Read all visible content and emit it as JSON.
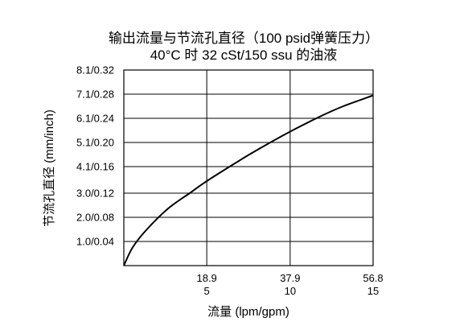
{
  "chart_data": {
    "type": "line",
    "title": "输出流量与节流孔直径（100 psid弹簧压力）",
    "subtitle": "40°C 时 32 cSt/150 ssu 的油液",
    "xlabel": "流量 (lpm/gpm)",
    "ylabel": "节流孔直径 (mm/inch)",
    "xlim": [
      0,
      56.8
    ],
    "ylim": [
      0,
      8.1
    ],
    "grid": true,
    "x_ticks": [
      {
        "value": 18.9,
        "label_top": "18.9",
        "label_bottom": "5"
      },
      {
        "value": 37.9,
        "label_top": "37.9",
        "label_bottom": "10"
      },
      {
        "value": 56.8,
        "label_top": "56.8",
        "label_bottom": "15"
      }
    ],
    "y_ticks": [
      {
        "value": 1.0,
        "label": "1.0/0.04"
      },
      {
        "value": 2.0,
        "label": "2.0/0.08"
      },
      {
        "value": 3.0,
        "label": "3.0/0.12"
      },
      {
        "value": 4.1,
        "label": "4.1/0.16"
      },
      {
        "value": 5.1,
        "label": "5.1/0.20"
      },
      {
        "value": 6.1,
        "label": "6.1/0.24"
      },
      {
        "value": 7.1,
        "label": "7.1/0.28"
      },
      {
        "value": 8.1,
        "label": "8.1/0.32"
      }
    ],
    "series": [
      {
        "color": "#000000",
        "x": [
          0,
          2,
          5,
          10,
          15,
          18.9,
          25,
          30,
          37.9,
          45,
          50,
          56.8
        ],
        "y": [
          0,
          0.75,
          1.45,
          2.35,
          3.0,
          3.5,
          4.2,
          4.75,
          5.55,
          6.2,
          6.6,
          7.05
        ]
      }
    ]
  }
}
